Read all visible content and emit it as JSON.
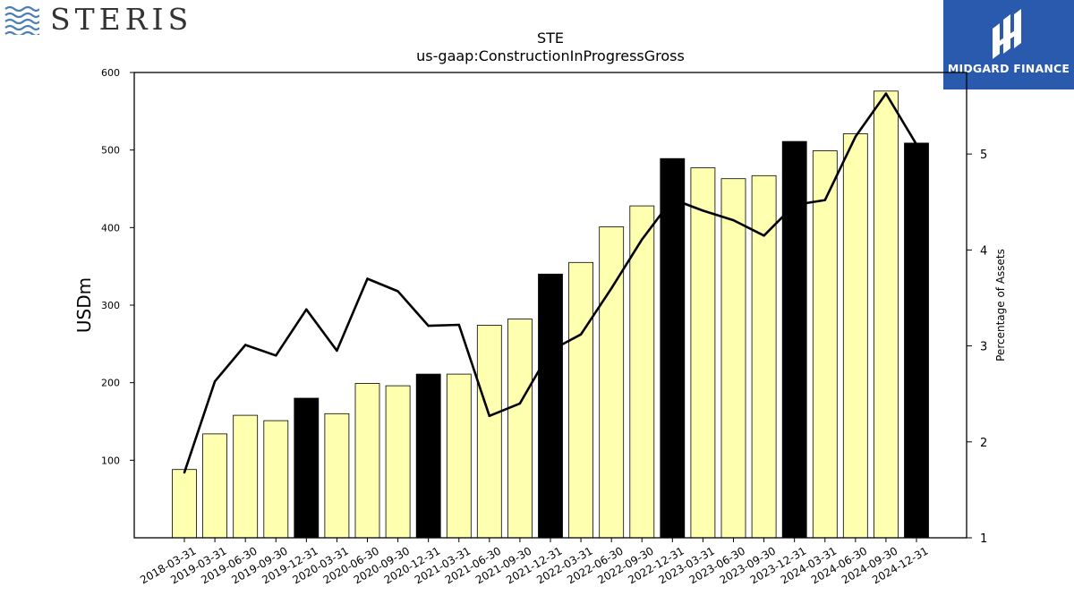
{
  "brand_left": {
    "name": "STERIS"
  },
  "brand_right": {
    "name": "MIDGARD FINANCE"
  },
  "chart_data": {
    "type": "bar",
    "title": "STE",
    "subtitle": "us-gaap:ConstructionInProgressGross",
    "ylabel": "USDm",
    "y2label": "Percentage of Assets",
    "ylim": [
      0,
      600
    ],
    "y2lim": [
      1,
      5.85
    ],
    "yticks": [
      100,
      200,
      300,
      400,
      500,
      600
    ],
    "y2ticks": [
      1,
      2,
      3,
      4,
      5
    ],
    "categories": [
      "2018-03-31",
      "2019-03-31",
      "2019-06-30",
      "2019-09-30",
      "2019-12-31",
      "2020-03-31",
      "2020-06-30",
      "2020-09-30",
      "2020-12-31",
      "2021-03-31",
      "2021-06-30",
      "2021-09-30",
      "2021-12-31",
      "2022-03-31",
      "2022-06-30",
      "2022-09-30",
      "2022-12-31",
      "2023-03-31",
      "2023-06-30",
      "2023-09-30",
      "2023-12-31",
      "2024-03-31",
      "2024-06-30",
      "2024-09-30",
      "2024-12-31"
    ],
    "series": [
      {
        "type": "bar",
        "values": [
          88,
          134,
          158,
          151,
          180,
          160,
          199,
          196,
          211,
          211,
          274,
          282,
          340,
          355,
          401,
          428,
          489,
          477,
          463,
          467,
          511,
          499,
          521,
          576,
          509
        ]
      },
      {
        "type": "line",
        "axis": "right",
        "values": [
          1.68,
          2.63,
          3.01,
          2.9,
          3.38,
          2.95,
          3.7,
          3.57,
          3.21,
          3.22,
          2.27,
          2.4,
          2.95,
          3.12,
          3.6,
          4.11,
          4.53,
          4.41,
          4.31,
          4.15,
          4.47,
          4.52,
          5.18,
          5.63,
          5.1
        ]
      }
    ],
    "highlight_year_end": true,
    "colors": {
      "bar": "#ffffb0",
      "bar_highlight": "#000000",
      "line": "#000000"
    }
  }
}
